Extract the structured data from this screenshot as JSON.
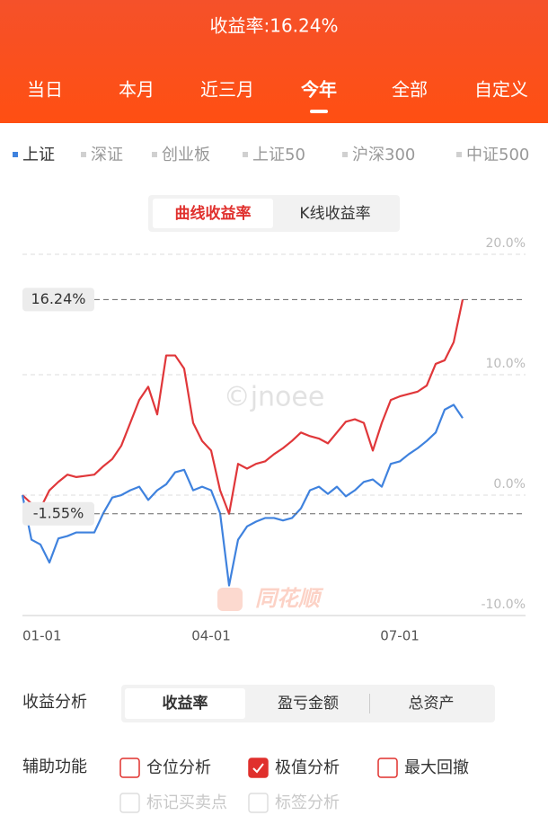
{
  "header": {
    "title": "收益率:16.24%",
    "tabs": [
      "当日",
      "本月",
      "近三月",
      "今年",
      "全部",
      "自定义"
    ],
    "active_tab": 3
  },
  "indices": {
    "items": [
      "上证",
      "深证",
      "创业板",
      "上证50",
      "沪深300",
      "中证500"
    ],
    "active": 0
  },
  "chart_modes": {
    "items": [
      "曲线收益率",
      "K线收益率"
    ],
    "active": 0
  },
  "chart_data": {
    "type": "line",
    "categories": [
      "01-01",
      null,
      null,
      null,
      null,
      null,
      null,
      null,
      null,
      null,
      null,
      null,
      null,
      null,
      null,
      null,
      null,
      null,
      null,
      null,
      null,
      "04-01",
      null,
      null,
      null,
      null,
      null,
      null,
      null,
      null,
      null,
      null,
      null,
      null,
      null,
      null,
      null,
      null,
      null,
      null,
      null,
      null,
      "07-01",
      null,
      null,
      null,
      null,
      null,
      null,
      null
    ],
    "series": [
      {
        "color": "#e0373a",
        "values": [
          0,
          -0.7,
          -1.1,
          0.4,
          1.1,
          1.7,
          1.5,
          1.6,
          1.7,
          2.4,
          3.0,
          4.1,
          6.0,
          7.9,
          9.0,
          6.7,
          11.6,
          11.6,
          10.5,
          6.0,
          4.5,
          3.7,
          0.4,
          -1.55,
          2.6,
          2.2,
          2.6,
          2.8,
          3.4,
          3.9,
          4.5,
          5.2,
          4.9,
          4.7,
          4.3,
          5.2,
          6.1,
          6.3,
          6.0,
          3.7,
          6.0,
          7.9,
          8.2,
          8.4,
          8.6,
          9.1,
          10.9,
          11.2,
          12.7,
          16.24
        ]
      },
      {
        "color": "#3f82de",
        "values": [
          0,
          -3.7,
          -4.1,
          -5.6,
          -3.6,
          -3.4,
          -3.1,
          -3.1,
          -3.1,
          -1.5,
          -0.2,
          0,
          0.4,
          0.7,
          -0.4,
          0.4,
          0.9,
          1.9,
          2.1,
          0.4,
          0.7,
          0.4,
          -1.5,
          -7.5,
          -3.7,
          -2.6,
          -2.2,
          -1.9,
          -1.9,
          -2.1,
          -1.9,
          -1.1,
          0.4,
          0.7,
          0.1,
          0.7,
          -0.1,
          0.4,
          1.1,
          1.3,
          0.7,
          2.6,
          2.8,
          3.4,
          3.9,
          4.5,
          5.2,
          7.1,
          7.5,
          6.4
        ]
      }
    ],
    "ylim": [
      -10,
      20
    ],
    "yticks": [
      {
        "value": -10,
        "label": "-10.0%"
      },
      {
        "value": 0,
        "label": "0.0%"
      },
      {
        "value": 10,
        "label": "10.0%"
      },
      {
        "value": 20,
        "label": "20.0%"
      }
    ],
    "grid": true,
    "annotations": [
      {
        "value": 16.24,
        "label": "16.24%"
      },
      {
        "value": -1.55,
        "label": "-1.55%"
      }
    ],
    "watermarks": [
      "©jnoee",
      "同花顺"
    ]
  },
  "analysis": {
    "label": "收益分析",
    "tabs": [
      "收益率",
      "盈亏金额",
      "总资产"
    ],
    "active": 0
  },
  "aux": {
    "label": "辅助功能",
    "options": [
      {
        "label": "仓位分析",
        "checked": false,
        "enabled": true
      },
      {
        "label": "极值分析",
        "checked": true,
        "enabled": true
      },
      {
        "label": "最大回撤",
        "checked": false,
        "enabled": true
      },
      {
        "label": "标记买卖点",
        "checked": false,
        "enabled": false
      },
      {
        "label": "标签分析",
        "checked": false,
        "enabled": false
      }
    ]
  }
}
